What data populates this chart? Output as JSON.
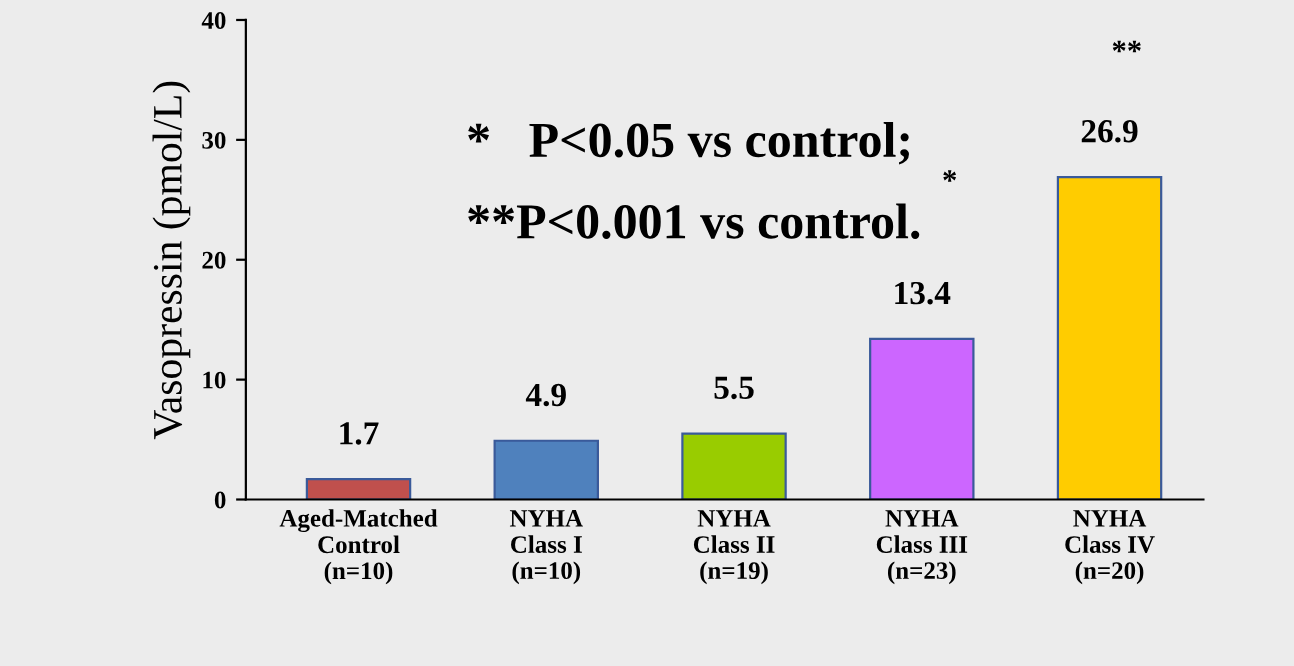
{
  "chart_data": {
    "type": "bar",
    "ylabel": "Vasopressin (pmol/L)",
    "categories": [
      "Aged-Matched\nControl\n(n=10)",
      "NYHA\nClass I\n(n=10)",
      "NYHA\nClass II\n(n=19)",
      "NYHA\nClass III\n(n=23)",
      "NYHA\nClass IV\n(n=20)"
    ],
    "values": [
      1.7,
      4.9,
      5.5,
      13.4,
      26.9
    ],
    "colors": [
      "#c0504d",
      "#4f81bd",
      "#99cc00",
      "#cc66ff",
      "#ffcc00"
    ],
    "data_labels": true,
    "ylim": [
      0,
      40
    ],
    "yticks": [
      0,
      10,
      20,
      30,
      40
    ],
    "grid": false,
    "legend": false,
    "annotations": [
      "*",
      "**",
      "*   P<0.05 vs control;",
      "**P<0.001 vs control."
    ]
  }
}
